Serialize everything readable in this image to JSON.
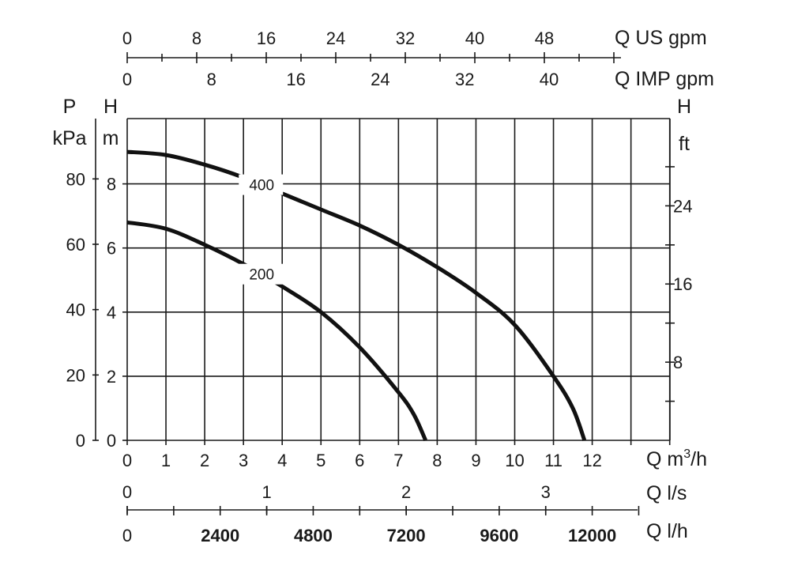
{
  "chart_data": {
    "type": "line",
    "axes": {
      "q_us_gpm": {
        "label": "Q US gpm",
        "ticks": [
          "0",
          "8",
          "16",
          "24",
          "32",
          "40",
          "48"
        ]
      },
      "q_imp_gpm": {
        "label": "Q IMP gpm",
        "ticks": [
          "0",
          "8",
          "16",
          "24",
          "32",
          "40"
        ]
      },
      "q_m3h": {
        "label_prefix": "Q m",
        "label_sup": "3",
        "label_suffix": "/h",
        "ticks": [
          "0",
          "1",
          "2",
          "3",
          "4",
          "5",
          "6",
          "7",
          "8",
          "9",
          "10",
          "11",
          "12"
        ],
        "xlim": [
          0,
          14
        ]
      },
      "q_ls": {
        "label": "Q l/s",
        "ticks": [
          "0",
          "1",
          "2",
          "3"
        ]
      },
      "q_lh": {
        "label": "Q l/h",
        "ticks": [
          "0",
          "2400",
          "4800",
          "7200",
          "9600",
          "12000"
        ]
      },
      "p_kpa": {
        "label_top": "P",
        "label_bottom": "kPa",
        "ticks": [
          "0",
          "20",
          "40",
          "60",
          "80"
        ]
      },
      "h_m": {
        "label_top": "H",
        "label_bottom": "m",
        "ticks": [
          "0",
          "2",
          "4",
          "6",
          "8"
        ],
        "ylim": [
          0,
          10
        ]
      },
      "h_ft": {
        "label_top": "H",
        "label_bottom": "ft",
        "ticks": [
          "8",
          "16",
          "24"
        ]
      }
    },
    "x_unit": "m3/h",
    "y_unit": "m",
    "grid": true,
    "series": [
      {
        "name": "400",
        "x": [
          0,
          1,
          2,
          3,
          4,
          5,
          6,
          7,
          8,
          9,
          10,
          11,
          11.5,
          11.8
        ],
        "y": [
          9.0,
          8.9,
          8.6,
          8.2,
          7.7,
          7.2,
          6.7,
          6.1,
          5.4,
          4.6,
          3.6,
          2.0,
          1.0,
          0
        ]
      },
      {
        "name": "200",
        "x": [
          0,
          1,
          2,
          3,
          4,
          5,
          6,
          7,
          7.4,
          7.7
        ],
        "y": [
          6.8,
          6.6,
          6.1,
          5.5,
          4.8,
          4.0,
          2.9,
          1.5,
          0.8,
          0
        ]
      }
    ]
  }
}
